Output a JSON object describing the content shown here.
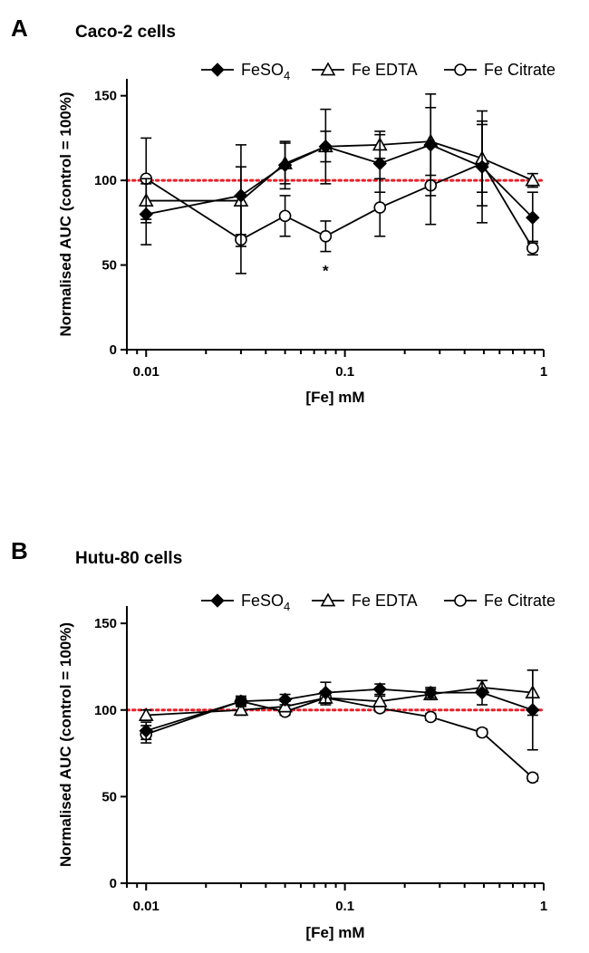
{
  "chart_data": [
    {
      "type": "line",
      "panel_label": "A",
      "title": "Caco-2 cells",
      "xlabel": "[Fe] mM",
      "ylabel": "Normalised AUC (control = 100%)",
      "xscale": "log",
      "xlim": [
        0.008,
        1.0
      ],
      "ylim": [
        0,
        160
      ],
      "x_ticks": [
        0.01,
        0.1,
        1
      ],
      "x_tick_labels": [
        "0.01",
        "0.1",
        "1"
      ],
      "y_ticks": [
        0,
        50,
        100,
        150
      ],
      "y_tick_labels": [
        "0",
        "50",
        "100",
        "150"
      ],
      "reference_line": {
        "y": 100,
        "color": "#e8202a",
        "style": "dotted"
      },
      "legend_position": "top",
      "annotations": [
        {
          "text": "*",
          "x": 0.08,
          "y": 48
        }
      ],
      "x": [
        0.01,
        0.03,
        0.05,
        0.08,
        0.15,
        0.27,
        0.49,
        0.88
      ],
      "series": [
        {
          "name": "FeSO",
          "name_subscript": "4",
          "marker": "filled-diamond",
          "values": [
            80,
            91,
            109,
            120,
            110,
            121,
            108,
            78
          ],
          "errors": [
            18,
            30,
            14,
            22,
            17,
            30,
            33,
            15
          ]
        },
        {
          "name": "Fe EDTA",
          "marker": "open-triangle",
          "values": [
            88,
            88,
            110,
            120,
            121,
            123,
            113,
            100
          ],
          "errors": [
            13,
            20,
            12,
            9,
            8,
            20,
            20,
            4
          ]
        },
        {
          "name": "Fe Citrate",
          "marker": "open-circle",
          "values": [
            101,
            65,
            79,
            67,
            84,
            97,
            110,
            60
          ],
          "errors": [
            24,
            20,
            12,
            9,
            17,
            23,
            25,
            4
          ]
        }
      ]
    },
    {
      "type": "line",
      "panel_label": "B",
      "title": "Hutu-80 cells",
      "xlabel": "[Fe] mM",
      "ylabel": "Normalised AUC (control = 100%)",
      "xscale": "log",
      "xlim": [
        0.008,
        1.0
      ],
      "ylim": [
        0,
        160
      ],
      "x_ticks": [
        0.01,
        0.1,
        1
      ],
      "x_tick_labels": [
        "0.01",
        "0.1",
        "1"
      ],
      "y_ticks": [
        0,
        50,
        100,
        150
      ],
      "y_tick_labels": [
        "0",
        "50",
        "100",
        "150"
      ],
      "reference_line": {
        "y": 100,
        "color": "#e8202a",
        "style": "dotted"
      },
      "legend_position": "top",
      "annotations": [],
      "x": [
        0.01,
        0.03,
        0.05,
        0.08,
        0.15,
        0.27,
        0.49,
        0.88
      ],
      "series": [
        {
          "name": "FeSO",
          "name_subscript": "4",
          "marker": "filled-diamond",
          "values": [
            88,
            105,
            106,
            110,
            112,
            110,
            110,
            100
          ],
          "errors": [
            5,
            3,
            3,
            6,
            3,
            3,
            7,
            23
          ]
        },
        {
          "name": "Fe EDTA",
          "marker": "open-triangle",
          "values": [
            97,
            100,
            102,
            107,
            105,
            109,
            113,
            110
          ],
          "errors": [
            3,
            3,
            3,
            4,
            3,
            3,
            4,
            13
          ]
        },
        {
          "name": "Fe Citrate",
          "marker": "open-circle",
          "values": [
            86,
            105,
            99,
            107,
            101,
            96,
            87,
            61
          ],
          "errors": [
            5,
            2,
            2,
            3,
            2,
            2,
            2,
            2
          ]
        }
      ]
    }
  ]
}
